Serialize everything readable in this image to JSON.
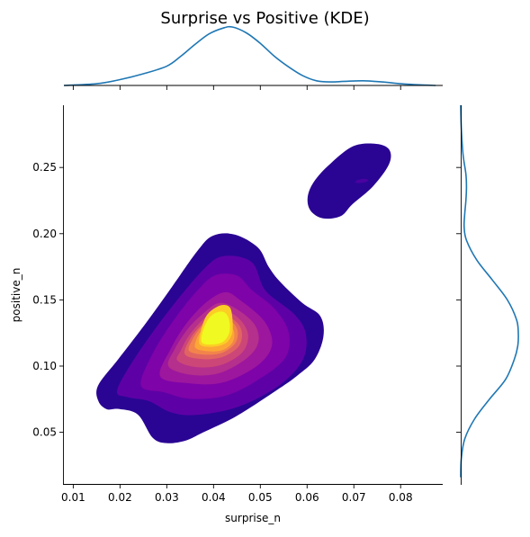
{
  "chart_data": {
    "type": "jointplot-kde",
    "title": "Surprise vs Positive (KDE)",
    "xlabel": "surprise_n",
    "ylabel": "positive_n",
    "xlim": [
      0.008,
      0.089
    ],
    "ylim": [
      0.011,
      0.297
    ],
    "xticks": [
      0.01,
      0.02,
      0.03,
      0.04,
      0.05,
      0.06,
      0.07,
      0.08
    ],
    "xtick_labels": [
      "0.01",
      "0.02",
      "0.03",
      "0.04",
      "0.05",
      "0.06",
      "0.07",
      "0.08"
    ],
    "yticks": [
      0.05,
      0.1,
      0.15,
      0.2,
      0.25
    ],
    "ytick_labels": [
      "0.05",
      "0.10",
      "0.15",
      "0.20",
      "0.25"
    ],
    "colormap": "plasma",
    "marginal_color": "#1f77b4",
    "contour_levels": [
      {
        "color": "#2a0593",
        "mode": [
          0.038,
          0.125
        ],
        "points": [
          [
            0.0153,
            0.0852
          ],
          [
            0.0154,
            0.0734
          ],
          [
            0.0172,
            0.0674
          ],
          [
            0.0197,
            0.0676
          ],
          [
            0.0238,
            0.0634
          ],
          [
            0.027,
            0.0458
          ],
          [
            0.03,
            0.0418
          ],
          [
            0.034,
            0.0437
          ],
          [
            0.0377,
            0.0498
          ],
          [
            0.0449,
            0.0622
          ],
          [
            0.0538,
            0.0825
          ],
          [
            0.0579,
            0.0928
          ],
          [
            0.0616,
            0.1049
          ],
          [
            0.0635,
            0.1226
          ],
          [
            0.0628,
            0.1379
          ],
          [
            0.059,
            0.1476
          ],
          [
            0.0543,
            0.1634
          ],
          [
            0.0518,
            0.1749
          ],
          [
            0.0495,
            0.1895
          ],
          [
            0.0446,
            0.1993
          ],
          [
            0.0399,
            0.1985
          ],
          [
            0.0366,
            0.1872
          ],
          [
            0.0311,
            0.1598
          ],
          [
            0.0253,
            0.1313
          ],
          [
            0.0196,
            0.1051
          ]
        ]
      },
      {
        "color": "#2a0593",
        "mode": [
          0.072,
          0.238
        ],
        "points": [
          [
            0.0697,
            0.2658
          ],
          [
            0.0748,
            0.2678
          ],
          [
            0.0776,
            0.2633
          ],
          [
            0.0775,
            0.2523
          ],
          [
            0.0741,
            0.2358
          ],
          [
            0.0697,
            0.2223
          ],
          [
            0.0672,
            0.2133
          ],
          [
            0.0634,
            0.2116
          ],
          [
            0.0608,
            0.2171
          ],
          [
            0.0601,
            0.2266
          ],
          [
            0.0612,
            0.2377
          ],
          [
            0.0643,
            0.2506
          ]
        ]
      },
      {
        "color": "#4a02a0",
        "mode": [
          0.0725,
          0.238
        ],
        "points": [
          [
            0.0722,
            0.2415
          ],
          [
            0.0731,
            0.2405
          ],
          [
            0.0726,
            0.2391
          ],
          [
            0.0714,
            0.2382
          ],
          [
            0.0703,
            0.2387
          ],
          [
            0.0708,
            0.2405
          ]
        ]
      },
      {
        "color": "#5d01a6",
        "mode": [
          0.038,
          0.125
        ],
        "points": [
          [
            0.0194,
            0.0818
          ],
          [
            0.0215,
            0.0766
          ],
          [
            0.0262,
            0.0735
          ],
          [
            0.0308,
            0.0652
          ],
          [
            0.0363,
            0.0631
          ],
          [
            0.0454,
            0.0694
          ],
          [
            0.0542,
            0.0858
          ],
          [
            0.0591,
            0.1049
          ],
          [
            0.0597,
            0.1248
          ],
          [
            0.0571,
            0.1397
          ],
          [
            0.0511,
            0.1571
          ],
          [
            0.0482,
            0.1784
          ],
          [
            0.0424,
            0.1832
          ],
          [
            0.0381,
            0.1739
          ],
          [
            0.0306,
            0.1426
          ],
          [
            0.0234,
            0.1073
          ]
        ]
      },
      {
        "color": "#7e03a8",
        "mode": [
          0.038,
          0.125
        ],
        "points": [
          [
            0.0245,
            0.0852
          ],
          [
            0.0294,
            0.0802
          ],
          [
            0.0349,
            0.0753
          ],
          [
            0.0424,
            0.0775
          ],
          [
            0.0491,
            0.0887
          ],
          [
            0.0552,
            0.1055
          ],
          [
            0.0561,
            0.1249
          ],
          [
            0.0532,
            0.1427
          ],
          [
            0.0481,
            0.1577
          ],
          [
            0.0451,
            0.1683
          ],
          [
            0.0404,
            0.1687
          ],
          [
            0.0365,
            0.1569
          ],
          [
            0.0316,
            0.1352
          ],
          [
            0.0269,
            0.1089
          ]
        ]
      },
      {
        "color": "#9c179e",
        "mode": [
          0.038,
          0.125
        ],
        "points": [
          [
            0.0286,
            0.0922
          ],
          [
            0.0345,
            0.0871
          ],
          [
            0.0419,
            0.0875
          ],
          [
            0.0493,
            0.1002
          ],
          [
            0.0525,
            0.1158
          ],
          [
            0.0509,
            0.1337
          ],
          [
            0.0458,
            0.1495
          ],
          [
            0.0425,
            0.1558
          ],
          [
            0.0385,
            0.1483
          ],
          [
            0.0342,
            0.1322
          ],
          [
            0.0308,
            0.1127
          ]
        ]
      },
      {
        "color": "#b52f8c",
        "mode": [
          0.038,
          0.125
        ],
        "points": [
          [
            0.0304,
            0.0996
          ],
          [
            0.0353,
            0.0934
          ],
          [
            0.0413,
            0.0947
          ],
          [
            0.0472,
            0.1062
          ],
          [
            0.0496,
            0.1184
          ],
          [
            0.0487,
            0.1318
          ],
          [
            0.0448,
            0.1434
          ],
          [
            0.0412,
            0.1476
          ],
          [
            0.0378,
            0.1397
          ],
          [
            0.0344,
            0.1277
          ],
          [
            0.0317,
            0.1128
          ]
        ]
      },
      {
        "color": "#cc4778",
        "mode": [
          0.038,
          0.125
        ],
        "points": [
          [
            0.0323,
            0.1041
          ],
          [
            0.0362,
            0.0993
          ],
          [
            0.0413,
            0.1005
          ],
          [
            0.0459,
            0.1094
          ],
          [
            0.0474,
            0.1213
          ],
          [
            0.0464,
            0.1319
          ],
          [
            0.0437,
            0.1402
          ],
          [
            0.0404,
            0.1418
          ],
          [
            0.0375,
            0.1343
          ],
          [
            0.0347,
            0.1228
          ],
          [
            0.033,
            0.1118
          ]
        ]
      },
      {
        "color": "#e16462",
        "mode": [
          0.038,
          0.125
        ],
        "points": [
          [
            0.0339,
            0.1088
          ],
          [
            0.0377,
            0.1053
          ],
          [
            0.0419,
            0.1069
          ],
          [
            0.0452,
            0.1142
          ],
          [
            0.0461,
            0.1233
          ],
          [
            0.0453,
            0.1317
          ],
          [
            0.0429,
            0.1377
          ],
          [
            0.0401,
            0.1385
          ],
          [
            0.0376,
            0.1318
          ],
          [
            0.035,
            0.1206
          ]
        ]
      },
      {
        "color": "#f2844b",
        "mode": [
          0.038,
          0.125
        ],
        "points": [
          [
            0.0348,
            0.1114
          ],
          [
            0.0383,
            0.1086
          ],
          [
            0.0418,
            0.11
          ],
          [
            0.0445,
            0.1166
          ],
          [
            0.0452,
            0.1251
          ],
          [
            0.0443,
            0.1322
          ],
          [
            0.0422,
            0.1359
          ],
          [
            0.0397,
            0.1354
          ],
          [
            0.0374,
            0.1296
          ],
          [
            0.0355,
            0.12
          ]
        ]
      },
      {
        "color": "#fca636",
        "mode": [
          0.038,
          0.125
        ],
        "points": [
          [
            0.0362,
            0.1135
          ],
          [
            0.0393,
            0.1111
          ],
          [
            0.0422,
            0.1125
          ],
          [
            0.0441,
            0.1181
          ],
          [
            0.0444,
            0.1256
          ],
          [
            0.0434,
            0.1309
          ],
          [
            0.0415,
            0.1327
          ],
          [
            0.0394,
            0.1323
          ],
          [
            0.0376,
            0.1276
          ],
          [
            0.0364,
            0.1206
          ]
        ]
      },
      {
        "color": "#fcce25",
        "mode": [
          0.038,
          0.125
        ],
        "points": [
          [
            0.0371,
            0.1162
          ],
          [
            0.0399,
            0.1146
          ],
          [
            0.0426,
            0.1172
          ],
          [
            0.0439,
            0.1238
          ],
          [
            0.0441,
            0.1321
          ],
          [
            0.0437,
            0.1429
          ],
          [
            0.0425,
            0.1461
          ],
          [
            0.0407,
            0.1447
          ],
          [
            0.0385,
            0.1381
          ],
          [
            0.0372,
            0.1252
          ]
        ]
      },
      {
        "color": "#f0f921",
        "mode": [
          0.038,
          0.125
        ],
        "points": [
          [
            0.0375,
            0.1178
          ],
          [
            0.0396,
            0.1163
          ],
          [
            0.0419,
            0.1181
          ],
          [
            0.0432,
            0.1236
          ],
          [
            0.0435,
            0.1302
          ],
          [
            0.0431,
            0.1372
          ],
          [
            0.0421,
            0.1409
          ],
          [
            0.0405,
            0.1403
          ],
          [
            0.0389,
            0.1355
          ],
          [
            0.0377,
            0.1262
          ]
        ]
      }
    ],
    "marginal_x": {
      "x": [
        0.008,
        0.015,
        0.02,
        0.025,
        0.03,
        0.033,
        0.036,
        0.039,
        0.042,
        0.044,
        0.047,
        0.05,
        0.053,
        0.056,
        0.059,
        0.062,
        0.065,
        0.068,
        0.072,
        0.076,
        0.08,
        0.084,
        0.0875
      ],
      "density": [
        0.0,
        0.03,
        0.1,
        0.2,
        0.33,
        0.5,
        0.7,
        0.88,
        0.98,
        1.0,
        0.9,
        0.72,
        0.5,
        0.32,
        0.17,
        0.08,
        0.06,
        0.07,
        0.08,
        0.06,
        0.03,
        0.01,
        0.0
      ]
    },
    "marginal_y": {
      "y": [
        0.016,
        0.03,
        0.045,
        0.06,
        0.075,
        0.09,
        0.105,
        0.115,
        0.125,
        0.135,
        0.15,
        0.165,
        0.18,
        0.195,
        0.205,
        0.215,
        0.225,
        0.235,
        0.245,
        0.26,
        0.28,
        0.297
      ],
      "density": [
        0.0,
        0.01,
        0.07,
        0.24,
        0.5,
        0.78,
        0.93,
        0.99,
        1.0,
        0.97,
        0.81,
        0.55,
        0.28,
        0.1,
        0.06,
        0.07,
        0.09,
        0.1,
        0.09,
        0.04,
        0.01,
        0.0
      ]
    }
  }
}
